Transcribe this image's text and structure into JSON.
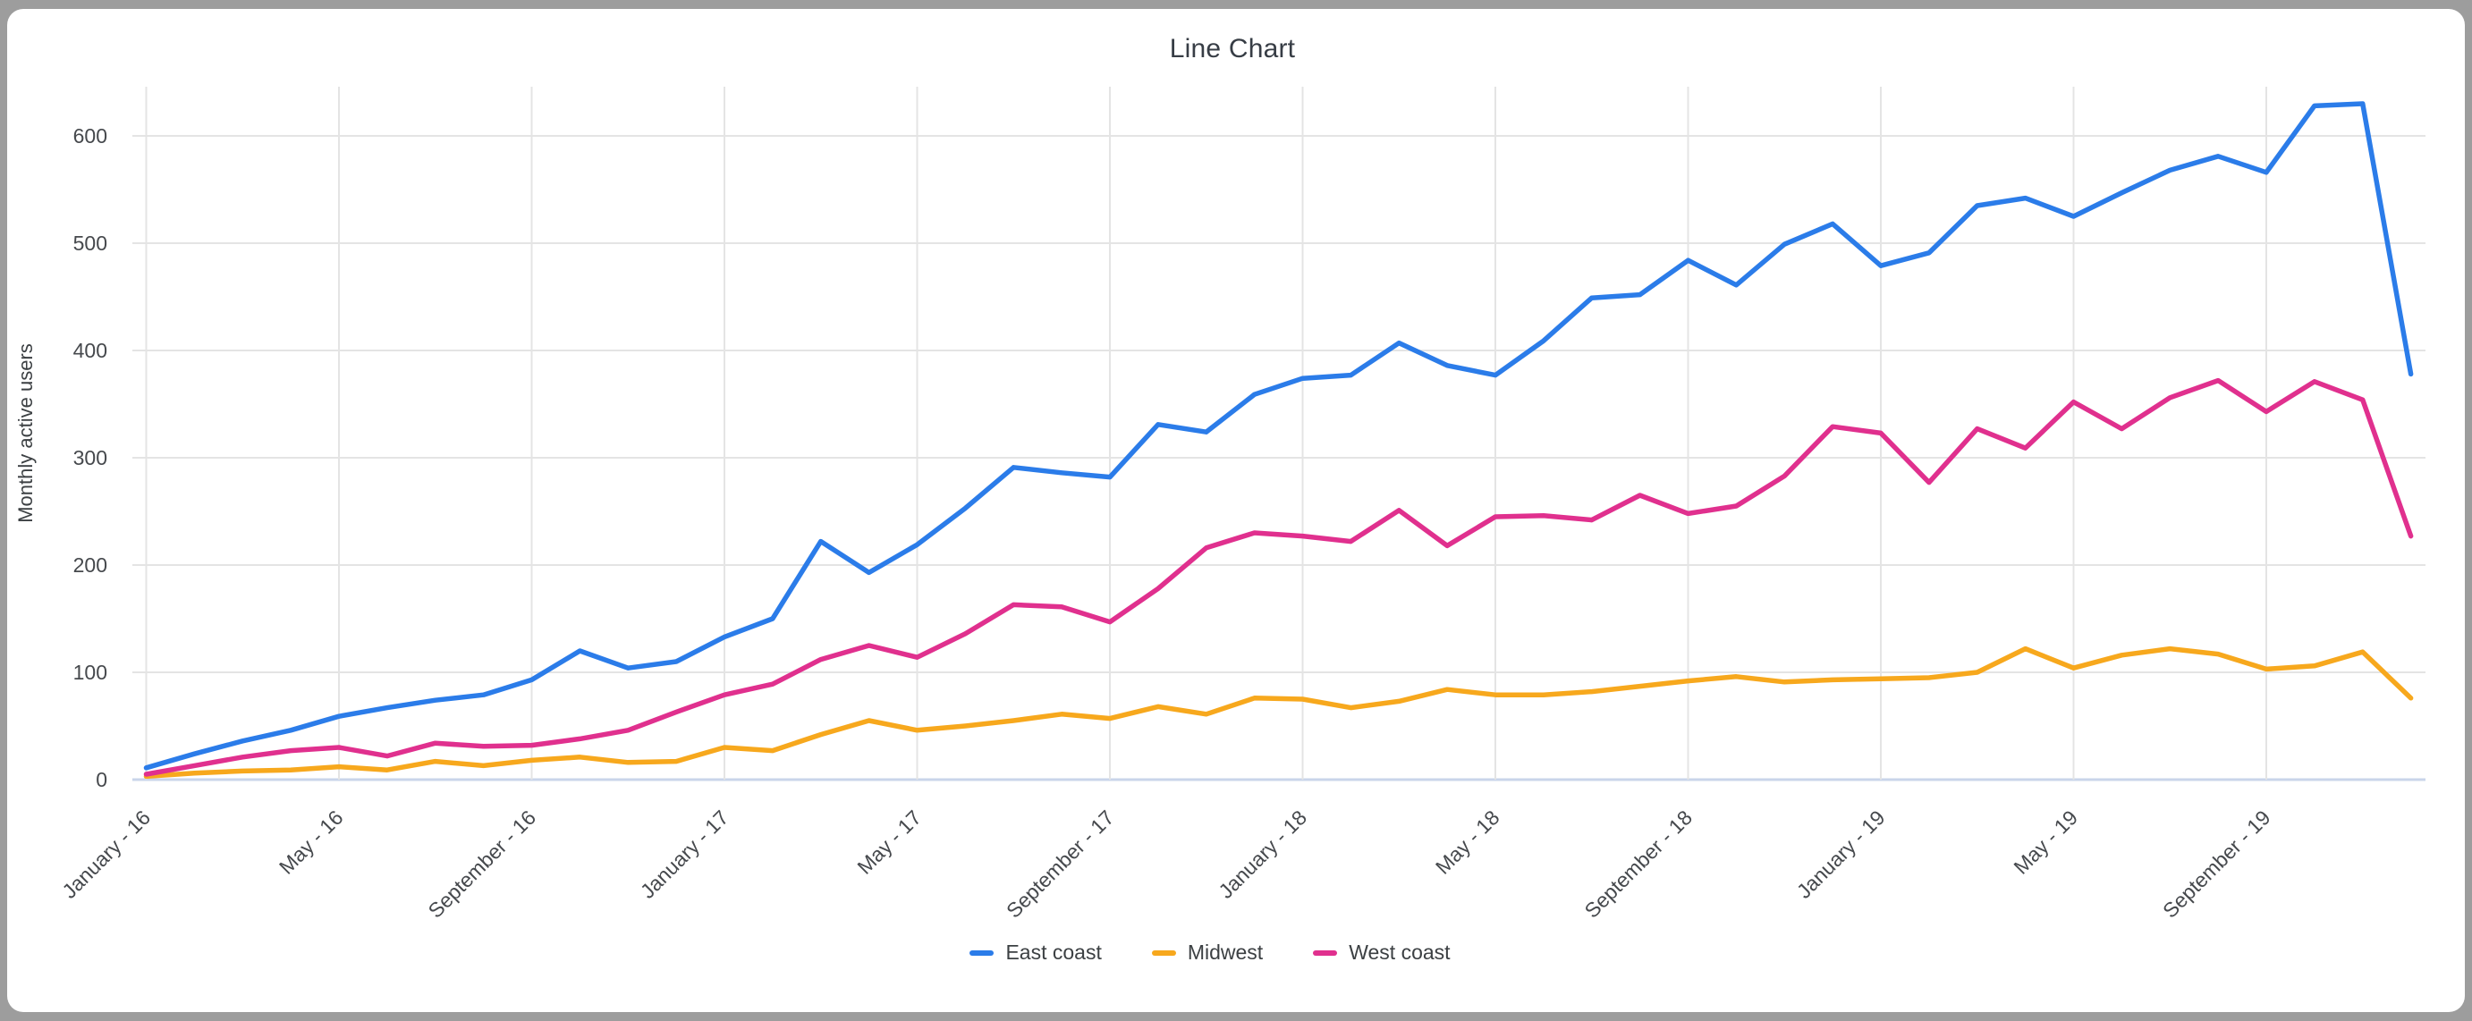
{
  "window": {
    "background_color": "#9D9D9D",
    "card_background_color": "#FFFFFF"
  },
  "chart": {
    "title": "Line Chart",
    "colors": {
      "gridline": "#E4E4E4",
      "baseline": "#C9D5EA",
      "title_text": "#373D45",
      "tick_text": "#46494D"
    }
  },
  "chart_data": {
    "type": "line",
    "title": "Line Chart",
    "xlabel": "",
    "ylabel": "Monthly active users",
    "x_tick_labels": [
      "January - 16",
      "May - 16",
      "September - 16",
      "January - 17",
      "May - 17",
      "September - 17",
      "January - 18",
      "May - 18",
      "September - 18",
      "January - 19",
      "May - 19",
      "September - 19"
    ],
    "points_per_tick": 4,
    "n_points": 48,
    "y_ticks": [
      0,
      100,
      200,
      300,
      400,
      500,
      600
    ],
    "ylim": [
      0,
      645
    ],
    "grid": true,
    "legend_position": "bottom",
    "series": [
      {
        "name": "East coast",
        "color": "#2B7CE9",
        "values": [
          11,
          24,
          36,
          46,
          59,
          67,
          74,
          79,
          93,
          120,
          104,
          110,
          133,
          150,
          222,
          193,
          219,
          253,
          291,
          286,
          282,
          331,
          324,
          359,
          374,
          377,
          407,
          386,
          377,
          409,
          449,
          452,
          484,
          461,
          499,
          518,
          479,
          491,
          535,
          542,
          525,
          547,
          568,
          581,
          566,
          628,
          630,
          378
        ]
      },
      {
        "name": "Midwest",
        "color": "#F7A81D",
        "values": [
          3,
          6,
          8,
          9,
          12,
          9,
          17,
          13,
          18,
          21,
          16,
          17,
          30,
          27,
          42,
          55,
          46,
          50,
          55,
          61,
          57,
          68,
          61,
          76,
          75,
          67,
          73,
          84,
          79,
          79,
          82,
          87,
          92,
          96,
          91,
          93,
          94,
          95,
          100,
          122,
          104,
          116,
          122,
          117,
          103,
          106,
          119,
          76
        ]
      },
      {
        "name": "West coast",
        "color": "#E0308E",
        "values": [
          5,
          13,
          21,
          27,
          30,
          22,
          34,
          31,
          32,
          38,
          46,
          63,
          79,
          89,
          112,
          125,
          114,
          136,
          163,
          161,
          147,
          178,
          216,
          230,
          227,
          222,
          251,
          218,
          245,
          246,
          242,
          265,
          248,
          255,
          283,
          329,
          323,
          277,
          327,
          309,
          352,
          327,
          356,
          372,
          343,
          371,
          354,
          227
        ]
      }
    ]
  }
}
